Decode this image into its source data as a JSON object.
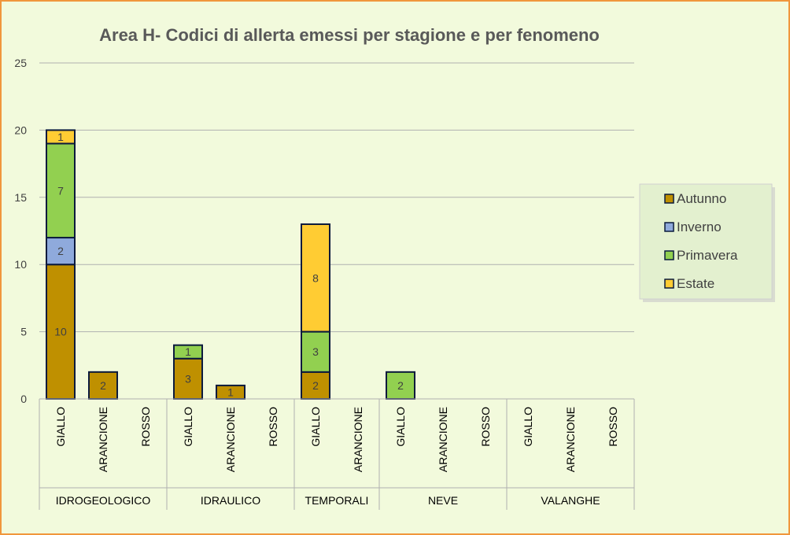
{
  "chart_data": {
    "type": "bar",
    "stacked": true,
    "title": "Area H- Codici di allerta emessi per stagione e per fenomeno",
    "ylim": [
      0,
      25
    ],
    "yticks": [
      0,
      5,
      10,
      15,
      20,
      25
    ],
    "grid": true,
    "legend_position": "right",
    "groups": [
      {
        "name": "IDROGEOLOGICO",
        "categories": [
          "GIALLO",
          "ARANCIONE",
          "ROSSO"
        ]
      },
      {
        "name": "IDRAULICO",
        "categories": [
          "GIALLO",
          "ARANCIONE",
          "ROSSO"
        ]
      },
      {
        "name": "TEMPORALI",
        "categories": [
          "GIALLO",
          "ARANCIONE"
        ]
      },
      {
        "name": "NEVE",
        "categories": [
          "GIALLO",
          "ARANCIONE",
          "ROSSO"
        ]
      },
      {
        "name": "VALANGHE",
        "categories": [
          "GIALLO",
          "ARANCIONE",
          "ROSSO"
        ]
      }
    ],
    "series": [
      {
        "name": "Autunno",
        "color": "#bf9000",
        "values": [
          10,
          2,
          0,
          3,
          1,
          0,
          2,
          0,
          0,
          0,
          0,
          0,
          0,
          0
        ]
      },
      {
        "name": "Inverno",
        "color": "#8faadc",
        "values": [
          2,
          0,
          0,
          0,
          0,
          0,
          0,
          0,
          0,
          0,
          0,
          0,
          0,
          0
        ]
      },
      {
        "name": "Primavera",
        "color": "#92d050",
        "values": [
          7,
          0,
          0,
          1,
          0,
          0,
          3,
          0,
          2,
          0,
          0,
          0,
          0,
          0
        ]
      },
      {
        "name": "Estate",
        "color": "#ffcc33",
        "values": [
          1,
          0,
          0,
          0,
          0,
          0,
          8,
          0,
          0,
          0,
          0,
          0,
          0,
          0
        ]
      }
    ]
  }
}
